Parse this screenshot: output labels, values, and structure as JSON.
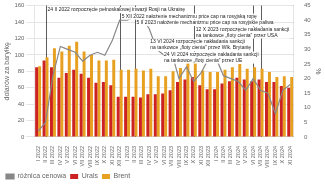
{
  "chart_data": {
    "type": "bar",
    "categories": [
      "I 2022",
      "II 2022",
      "III 2022",
      "IV 2022",
      "V 2022",
      "VI 2022",
      "VII 2022",
      "VIII 2022",
      "IX 2022",
      "X 2022",
      "XI 2022",
      "XII 2022",
      "I 2023",
      "II 2023",
      "III 2023",
      "IV 2023",
      "V 2023",
      "VI 2023",
      "VII 2023",
      "VIII 2023",
      "IX 2023",
      "X 2023",
      "XI 2023",
      "XII 2023",
      "I 2024",
      "II 2024",
      "III 2024",
      "IV 2024",
      "V 2024",
      "VI 2024",
      "VII 2024",
      "VIII 2024",
      "IX 2024",
      "X 2024",
      "XI 2024"
    ],
    "series": [
      {
        "name": "Urals",
        "color": "#cc2222",
        "values": [
          85,
          93,
          85,
          72,
          78,
          82,
          77,
          72,
          66,
          67,
          63,
          49,
          49,
          49,
          48,
          52,
          52,
          53,
          57,
          67,
          70,
          73,
          63,
          58,
          58,
          65,
          68,
          72,
          70,
          68,
          70,
          67,
          67,
          62,
          60
        ]
      },
      {
        "name": "Brent",
        "color": "#e8a020",
        "values": [
          86,
          97,
          108,
          104,
          111,
          116,
          104,
          100,
          93,
          93,
          94,
          82,
          82,
          83,
          81,
          83,
          74,
          74,
          80,
          84,
          92,
          90,
          81,
          79,
          79,
          82,
          85,
          89,
          83,
          85,
          83,
          79,
          73,
          74,
          73
        ]
      },
      {
        "name": "różnica cenowa",
        "type": "line",
        "axis": "y2",
        "color": "#888888",
        "values": [
          2,
          5,
          21,
          31,
          30,
          29,
          26,
          28,
          29,
          28,
          33,
          40,
          40,
          41,
          41,
          37,
          30,
          28,
          29,
          20,
          24,
          19,
          22,
          27,
          27,
          21,
          20,
          19,
          16,
          20,
          16,
          15,
          8,
          16,
          18
        ]
      }
    ],
    "ylabel": "dolarów za baryłkę",
    "y2label": "%",
    "ylim": [
      0,
      160
    ],
    "yticks": [
      0,
      20,
      40,
      60,
      80,
      100,
      120,
      140,
      160
    ],
    "y2lim": [
      0,
      45
    ],
    "y2ticks": [
      0,
      5,
      10,
      15,
      20,
      25,
      30,
      35,
      40,
      45
    ],
    "grid": true,
    "legend": "lower left",
    "annotations": [
      {
        "text": "24 II 2022 rozpoczęcie pełnoskalowej inwazji Rosji na Ukrainę",
        "x": "II 2022"
      },
      {
        "text": "5 XII 2022 nałożenie mechanizmu price cap na rosyjską ropę",
        "x": "XII 2022"
      },
      {
        "text": "5 II 2023 nałożenie mechanizmu price cap na rosyjskie paliwa",
        "x": "II 2023"
      },
      {
        "text": "12 X 2023 rozpoczęcie nakładania sankcji\nna tankowce „floty cienia” przez USA",
        "x": "X 2023"
      },
      {
        "text": "13 VI 2024 rozpoczęcie nakładania sankcji\nna tankowce „floty cienia” przez Wlk. Brytanię",
        "x": "VI 2024"
      },
      {
        "text": "24 VI 2024 rozpoczęcie nakładania sankcji\nna tankowce „floty cienia” przez UE",
        "x": "VII 2024"
      }
    ]
  }
}
